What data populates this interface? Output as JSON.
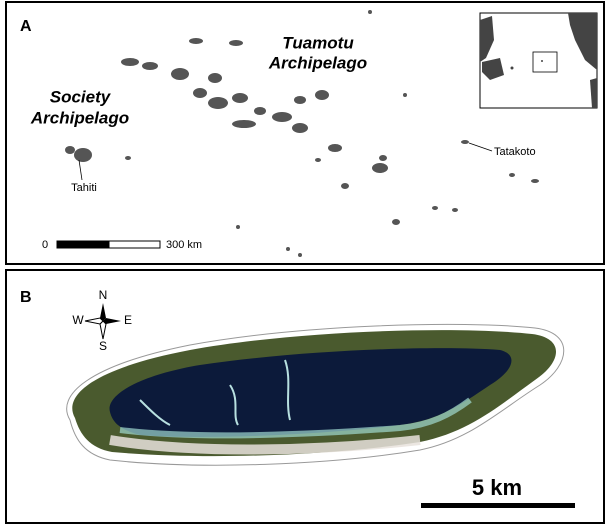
{
  "panel_a": {
    "label": "A",
    "region_labels": [
      {
        "lines": [
          "Tuamotu",
          "Archipelago"
        ]
      },
      {
        "lines": [
          "Society",
          "Archipelago"
        ]
      }
    ],
    "place_labels": [
      "Tahiti",
      "Tatakoto"
    ],
    "scale_bar": {
      "start": "0",
      "end": "300 km"
    }
  },
  "panel_b": {
    "label": "B",
    "compass": {
      "n": "N",
      "s": "S",
      "w": "W",
      "e": "E"
    },
    "scale_bar": "5 km"
  }
}
